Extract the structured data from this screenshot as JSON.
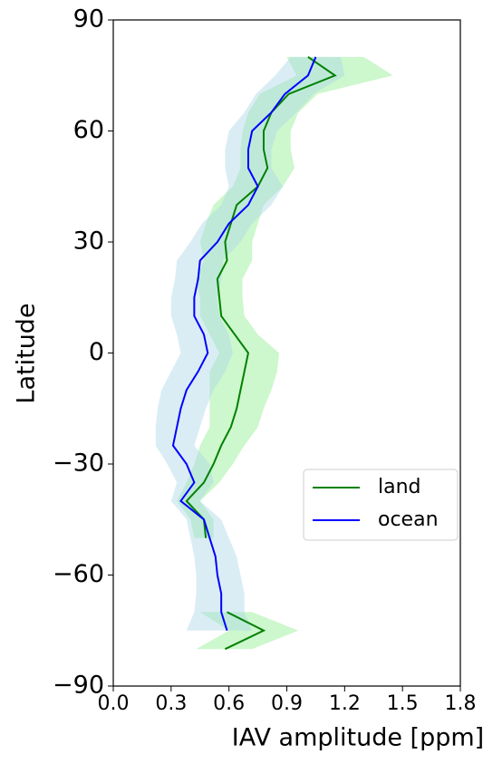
{
  "chart_data": {
    "type": "line",
    "xlabel": "IAV amplitude [ppm]",
    "ylabel": "Latitude",
    "y": [
      -80,
      -75,
      -70,
      -65,
      -60,
      -55,
      -50,
      -45,
      -40,
      -35,
      -30,
      -25,
      -20,
      -15,
      -10,
      -5,
      0,
      5,
      10,
      15,
      20,
      25,
      30,
      35,
      40,
      45,
      50,
      55,
      60,
      65,
      70,
      75,
      80
    ],
    "series": [
      {
        "name": "land",
        "color": "#008000",
        "band_color": "#90ee90",
        "values": [
          0.58,
          0.78,
          0.59,
          null,
          null,
          null,
          0.48,
          0.47,
          0.38,
          0.47,
          0.52,
          0.56,
          0.61,
          0.64,
          0.66,
          0.68,
          0.7,
          0.63,
          0.56,
          0.55,
          0.54,
          0.59,
          0.58,
          0.61,
          0.64,
          0.75,
          0.8,
          0.78,
          0.78,
          0.82,
          0.91,
          1.15,
          1.01
        ],
        "lower": [
          0.43,
          0.6,
          0.45,
          null,
          null,
          null,
          0.42,
          0.4,
          0.33,
          0.38,
          0.42,
          0.45,
          0.5,
          0.5,
          0.5,
          0.5,
          0.55,
          0.5,
          0.45,
          0.45,
          0.43,
          0.47,
          0.45,
          0.48,
          0.52,
          0.62,
          0.66,
          0.66,
          0.67,
          0.7,
          0.76,
          0.95,
          0.9
        ],
        "upper": [
          0.72,
          0.96,
          0.72,
          null,
          null,
          null,
          0.52,
          0.52,
          0.45,
          0.55,
          0.62,
          0.68,
          0.75,
          0.78,
          0.82,
          0.85,
          0.86,
          0.75,
          0.68,
          0.67,
          0.67,
          0.72,
          0.72,
          0.75,
          0.78,
          0.88,
          0.94,
          0.92,
          0.92,
          0.96,
          1.06,
          1.45,
          1.3
        ]
      },
      {
        "name": "ocean",
        "color": "#0000ff",
        "band_color": "#add8e6",
        "values": [
          null,
          0.59,
          0.56,
          0.56,
          0.54,
          0.53,
          0.5,
          0.47,
          0.35,
          0.42,
          0.38,
          0.31,
          0.33,
          0.35,
          0.38,
          0.44,
          0.49,
          0.47,
          0.42,
          0.42,
          0.44,
          0.45,
          0.54,
          0.6,
          0.7,
          0.75,
          0.7,
          0.7,
          0.72,
          0.82,
          0.89,
          1.01,
          1.05
        ],
        "lower": [
          null,
          0.38,
          0.42,
          0.43,
          0.43,
          0.42,
          0.4,
          0.38,
          0.3,
          0.33,
          0.28,
          0.22,
          0.22,
          0.23,
          0.25,
          0.3,
          0.35,
          0.33,
          0.3,
          0.3,
          0.32,
          0.33,
          0.4,
          0.46,
          0.56,
          0.6,
          0.58,
          0.58,
          0.6,
          0.68,
          0.74,
          0.84,
          0.92
        ],
        "upper": [
          null,
          0.72,
          0.68,
          0.68,
          0.66,
          0.64,
          0.6,
          0.56,
          0.45,
          0.52,
          0.5,
          0.42,
          0.45,
          0.48,
          0.52,
          0.58,
          0.62,
          0.6,
          0.55,
          0.54,
          0.56,
          0.57,
          0.66,
          0.72,
          0.82,
          0.88,
          0.82,
          0.82,
          0.85,
          0.95,
          1.04,
          1.2,
          1.18
        ]
      }
    ],
    "xlim": [
      0,
      1.8
    ],
    "xticks": [
      {
        "value": 0,
        "label": "0.0"
      },
      0.3,
      0.6,
      0.9,
      1.2,
      1.5,
      1.8
    ],
    "ylim": [
      -90,
      90
    ],
    "yticks": [
      {
        "value": -90,
        "label": "−90"
      },
      {
        "value": -60,
        "label": "−60"
      },
      {
        "value": -30,
        "label": "−30"
      },
      0,
      30,
      60,
      90
    ],
    "legend": "lower right"
  }
}
